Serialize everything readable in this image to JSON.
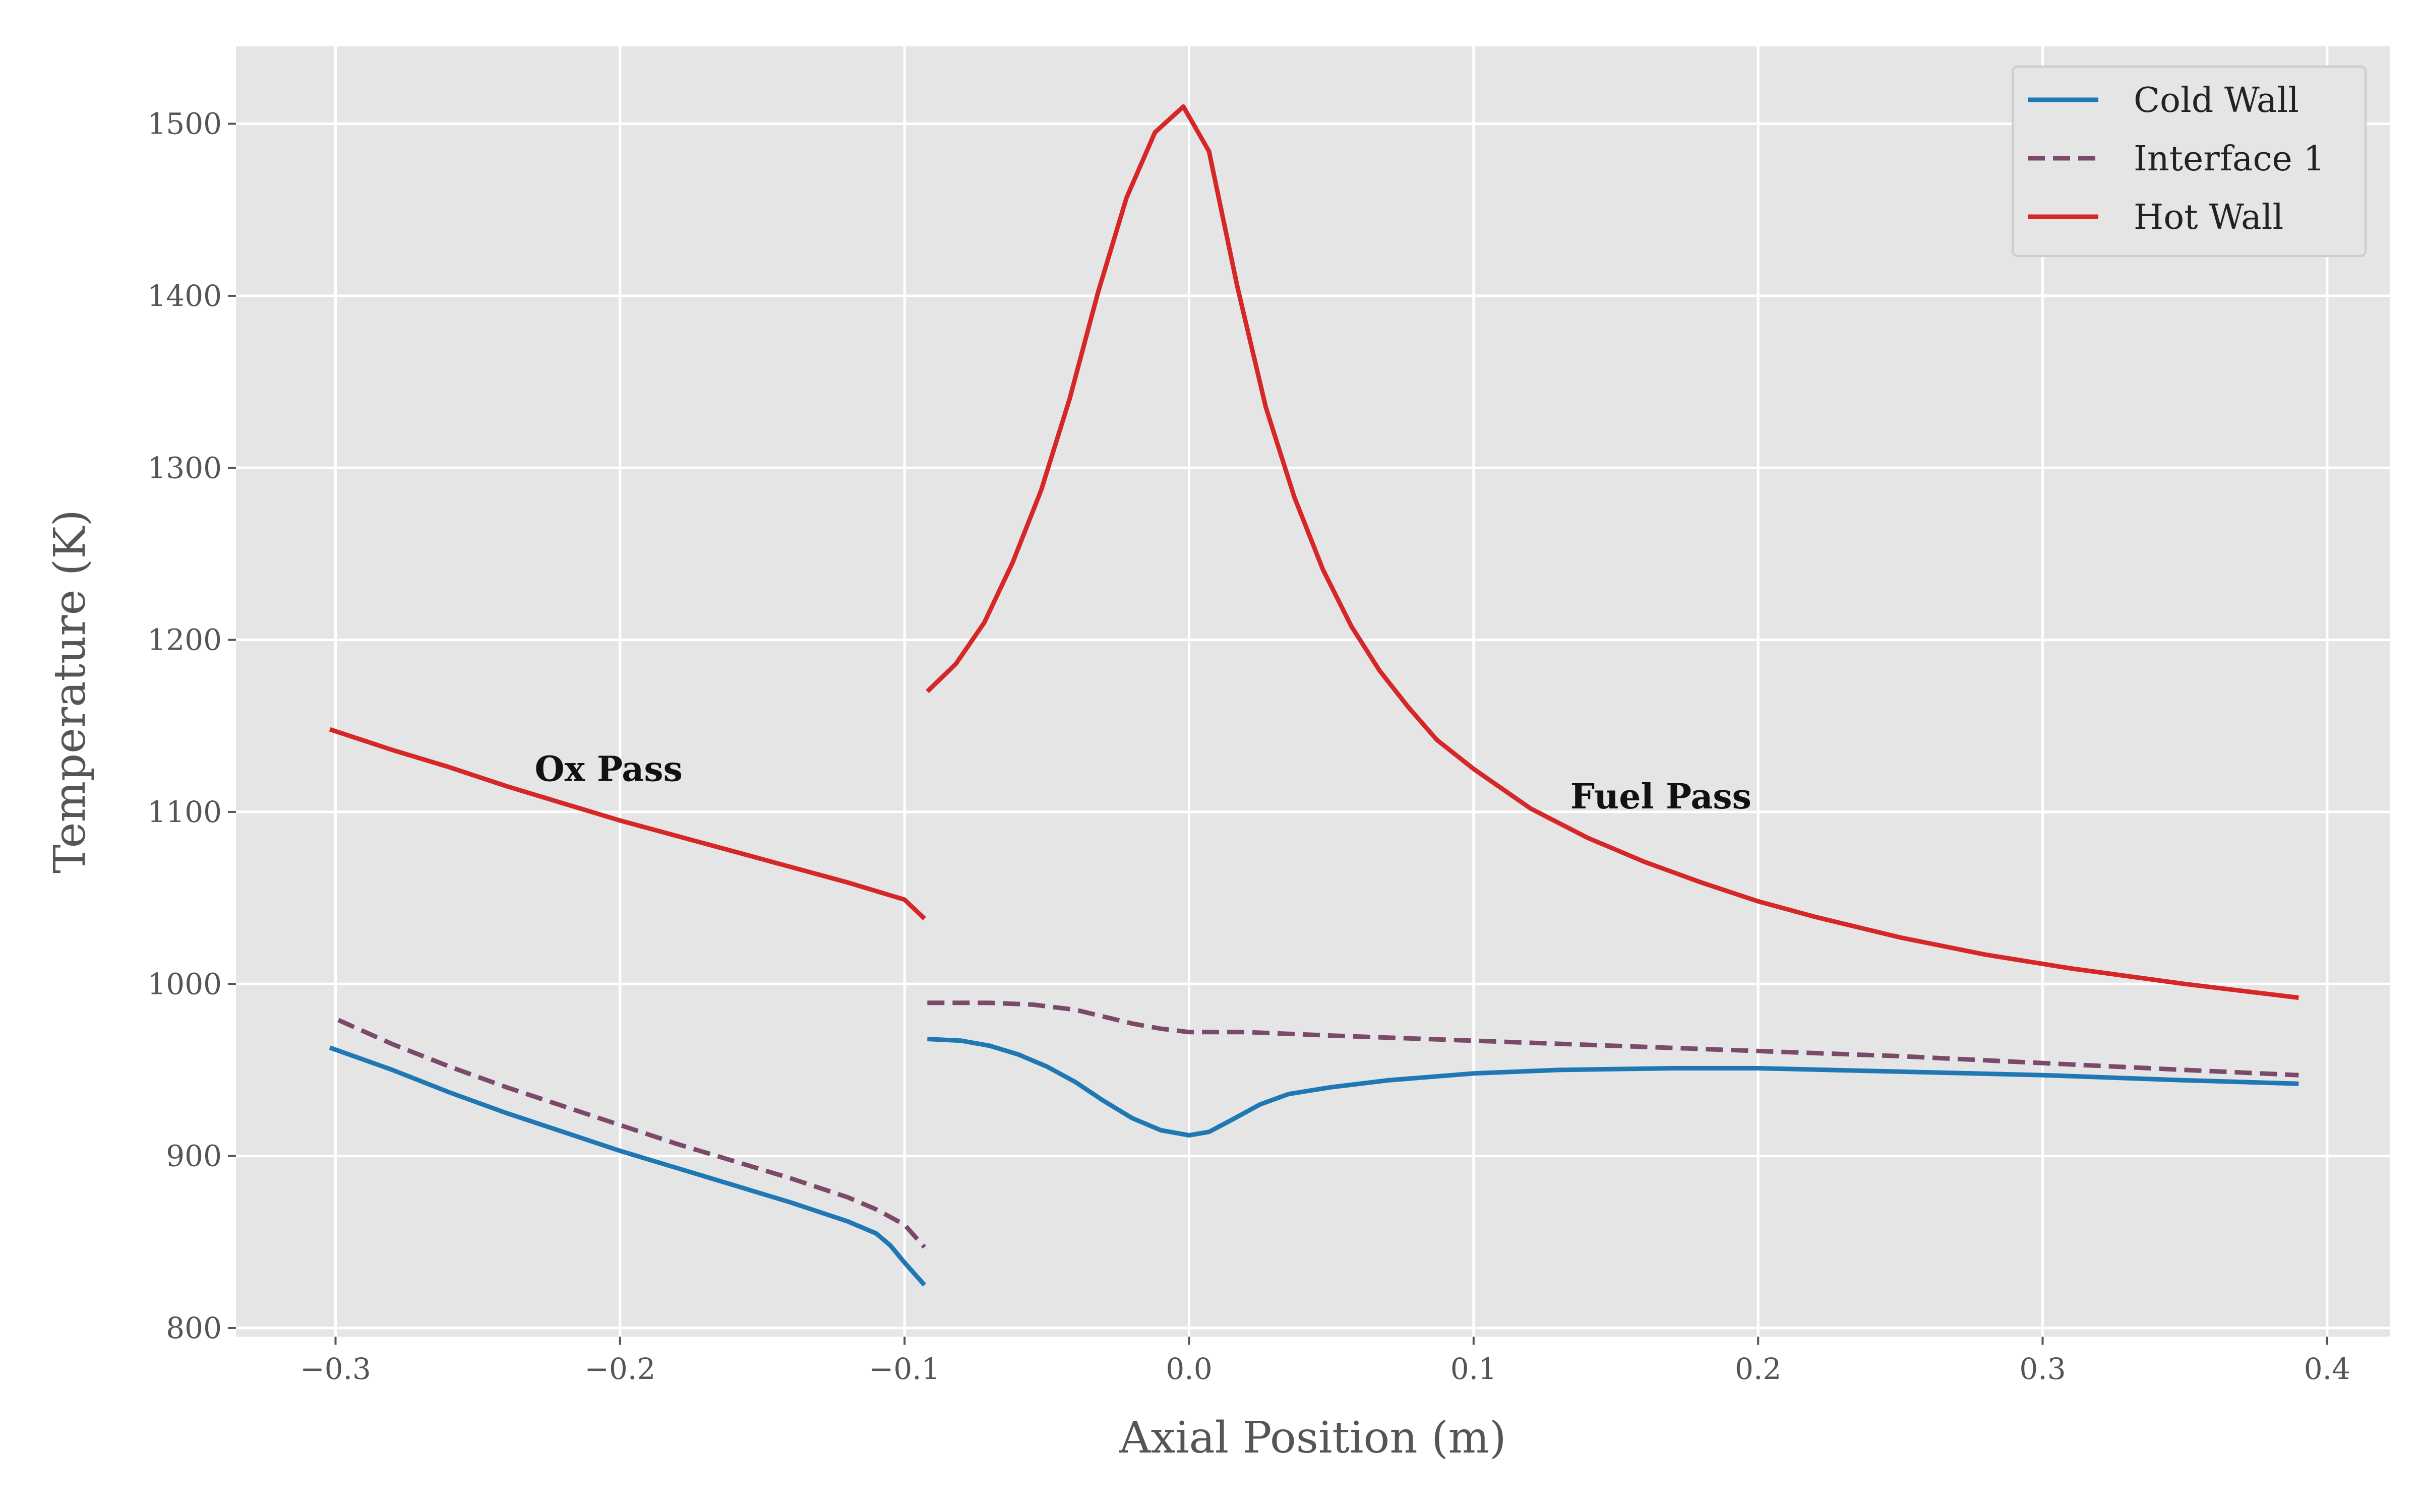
{
  "chart_data": {
    "type": "line",
    "xlabel": "Axial Position (m)",
    "ylabel": "Temperature (K)",
    "xlim": [
      -0.335,
      0.422
    ],
    "ylim": [
      795,
      1545
    ],
    "xticks": [
      -0.3,
      -0.2,
      -0.1,
      0.0,
      0.1,
      0.2,
      0.3,
      0.4
    ],
    "xtick_labels": [
      "−0.3",
      "−0.2",
      "−0.1",
      "0.0",
      "0.1",
      "0.2",
      "0.3",
      "0.4"
    ],
    "yticks": [
      800,
      900,
      1000,
      1100,
      1200,
      1300,
      1400,
      1500
    ],
    "ytick_labels": [
      "800",
      "900",
      "1000",
      "1100",
      "1200",
      "1300",
      "1400",
      "1500"
    ],
    "grid": true,
    "background": "#e5e5e5",
    "grid_color": "#ffffff",
    "legend_position": "top-right",
    "annotations": [
      {
        "text": "Ox Pass",
        "x": -0.23,
        "y": 1118
      },
      {
        "text": "Fuel Pass",
        "x": 0.134,
        "y": 1102
      }
    ],
    "series": [
      {
        "name": "Cold Wall",
        "color": "#1f77b4",
        "dash": "solid",
        "segments": [
          [
            [
              -0.302,
              963
            ],
            [
              -0.28,
              950
            ],
            [
              -0.26,
              937
            ],
            [
              -0.24,
              925
            ],
            [
              -0.22,
              914
            ],
            [
              -0.2,
              903
            ],
            [
              -0.18,
              893
            ],
            [
              -0.16,
              883
            ],
            [
              -0.14,
              873
            ],
            [
              -0.12,
              862
            ],
            [
              -0.11,
              855
            ],
            [
              -0.105,
              848
            ],
            [
              -0.1,
              838
            ],
            [
              -0.093,
              825
            ]
          ],
          [
            [
              -0.092,
              968
            ],
            [
              -0.08,
              967
            ],
            [
              -0.07,
              964
            ],
            [
              -0.06,
              959
            ],
            [
              -0.05,
              952
            ],
            [
              -0.04,
              943
            ],
            [
              -0.03,
              932
            ],
            [
              -0.02,
              922
            ],
            [
              -0.01,
              915
            ],
            [
              0.0,
              912
            ],
            [
              0.007,
              914
            ],
            [
              0.015,
              921
            ],
            [
              0.025,
              930
            ],
            [
              0.035,
              936
            ],
            [
              0.05,
              940
            ],
            [
              0.07,
              944
            ],
            [
              0.1,
              948
            ],
            [
              0.13,
              950
            ],
            [
              0.17,
              951
            ],
            [
              0.2,
              951
            ],
            [
              0.25,
              949
            ],
            [
              0.3,
              947
            ],
            [
              0.35,
              944
            ],
            [
              0.39,
              942
            ]
          ]
        ]
      },
      {
        "name": "Interface 1",
        "color": "#7b4a6b",
        "dash": "dashed",
        "segments": [
          [
            [
              -0.299,
              979
            ],
            [
              -0.28,
              965
            ],
            [
              -0.26,
              952
            ],
            [
              -0.24,
              940
            ],
            [
              -0.22,
              929
            ],
            [
              -0.2,
              918
            ],
            [
              -0.18,
              907
            ],
            [
              -0.16,
              897
            ],
            [
              -0.14,
              887
            ],
            [
              -0.12,
              876
            ],
            [
              -0.11,
              869
            ],
            [
              -0.1,
              860
            ],
            [
              -0.093,
              847
            ]
          ],
          [
            [
              -0.092,
              989
            ],
            [
              -0.07,
              989
            ],
            [
              -0.055,
              988
            ],
            [
              -0.04,
              985
            ],
            [
              -0.03,
              981
            ],
            [
              -0.02,
              977
            ],
            [
              -0.01,
              974
            ],
            [
              0.0,
              972
            ],
            [
              0.01,
              972
            ],
            [
              0.02,
              972
            ],
            [
              0.05,
              970
            ],
            [
              0.1,
              967
            ],
            [
              0.15,
              964
            ],
            [
              0.2,
              961
            ],
            [
              0.25,
              958
            ],
            [
              0.3,
              954
            ],
            [
              0.35,
              950
            ],
            [
              0.39,
              947
            ]
          ]
        ]
      },
      {
        "name": "Hot Wall",
        "color": "#d62728",
        "dash": "solid",
        "segments": [
          [
            [
              -0.302,
              1148
            ],
            [
              -0.28,
              1136
            ],
            [
              -0.26,
              1126
            ],
            [
              -0.24,
              1115
            ],
            [
              -0.22,
              1105
            ],
            [
              -0.2,
              1095
            ],
            [
              -0.18,
              1086
            ],
            [
              -0.16,
              1077
            ],
            [
              -0.14,
              1068
            ],
            [
              -0.12,
              1059
            ],
            [
              -0.1,
              1049
            ],
            [
              -0.093,
              1038
            ]
          ],
          [
            [
              -0.092,
              1170
            ],
            [
              -0.082,
              1186
            ],
            [
              -0.072,
              1210
            ],
            [
              -0.062,
              1245
            ],
            [
              -0.052,
              1287
            ],
            [
              -0.042,
              1340
            ],
            [
              -0.032,
              1402
            ],
            [
              -0.022,
              1457
            ],
            [
              -0.012,
              1495
            ],
            [
              -0.002,
              1510
            ],
            [
              0.007,
              1484
            ],
            [
              0.017,
              1405
            ],
            [
              0.027,
              1335
            ],
            [
              0.037,
              1283
            ],
            [
              0.047,
              1241
            ],
            [
              0.057,
              1208
            ],
            [
              0.067,
              1182
            ],
            [
              0.077,
              1161
            ],
            [
              0.087,
              1142
            ],
            [
              0.1,
              1125
            ],
            [
              0.12,
              1102
            ],
            [
              0.14,
              1085
            ],
            [
              0.16,
              1071
            ],
            [
              0.18,
              1059
            ],
            [
              0.2,
              1048
            ],
            [
              0.22,
              1039
            ],
            [
              0.25,
              1027
            ],
            [
              0.28,
              1017
            ],
            [
              0.31,
              1009
            ],
            [
              0.35,
              1000
            ],
            [
              0.39,
              992
            ]
          ]
        ]
      }
    ]
  }
}
